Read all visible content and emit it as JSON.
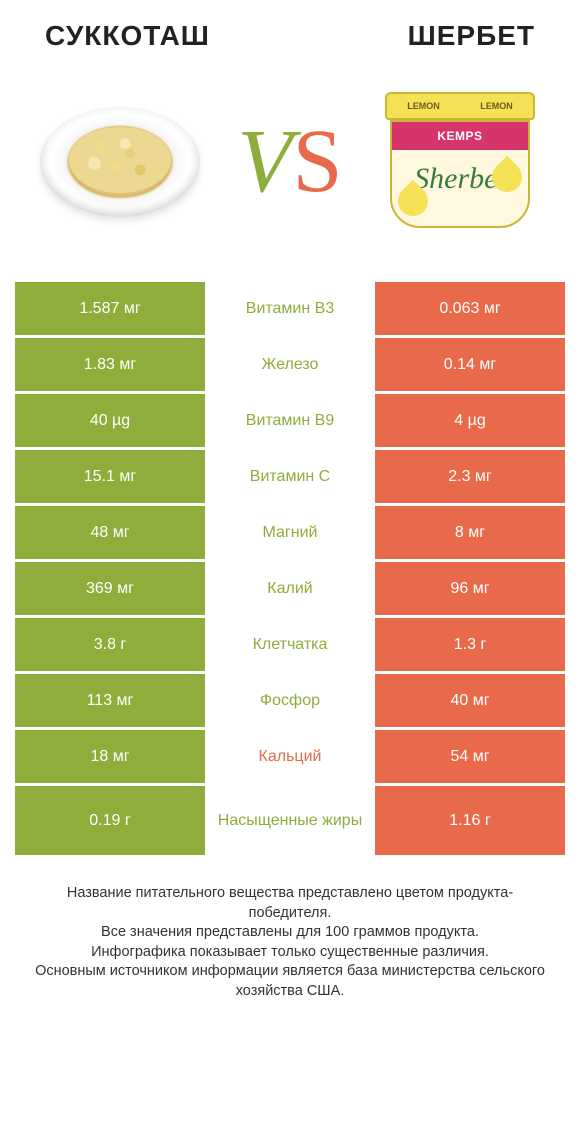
{
  "colors": {
    "green": "#8fad3a",
    "orange": "#e96a4b",
    "vs_v": "#8fad3a",
    "vs_s": "#e96a4b"
  },
  "header": {
    "left_title": "СУККОТАШ",
    "right_title": "ШЕРБЕТ",
    "vs_v": "V",
    "vs_s": "S"
  },
  "tub": {
    "lid_text_left": "LEMON",
    "lid_text_right": "LEMON",
    "brand": "KEMPS",
    "script": "Sherbet"
  },
  "rows": [
    {
      "nutrient": "Витамин B3",
      "left": "1.587 мг",
      "right": "0.063 мг",
      "winner": "left"
    },
    {
      "nutrient": "Железо",
      "left": "1.83 мг",
      "right": "0.14 мг",
      "winner": "left"
    },
    {
      "nutrient": "Витамин B9",
      "left": "40 µg",
      "right": "4 µg",
      "winner": "left"
    },
    {
      "nutrient": "Витамин C",
      "left": "15.1 мг",
      "right": "2.3 мг",
      "winner": "left"
    },
    {
      "nutrient": "Магний",
      "left": "48 мг",
      "right": "8 мг",
      "winner": "left"
    },
    {
      "nutrient": "Калий",
      "left": "369 мг",
      "right": "96 мг",
      "winner": "left"
    },
    {
      "nutrient": "Клетчатка",
      "left": "3.8 г",
      "right": "1.3 г",
      "winner": "left"
    },
    {
      "nutrient": "Фосфор",
      "left": "113 мг",
      "right": "40 мг",
      "winner": "left"
    },
    {
      "nutrient": "Кальций",
      "left": "18 мг",
      "right": "54 мг",
      "winner": "right"
    },
    {
      "nutrient": "Насыщенные жиры",
      "left": "0.19 г",
      "right": "1.16 г",
      "winner": "left",
      "tall": true
    }
  ],
  "footer": "Название питательного вещества представлено цветом продукта-победителя.\nВсе значения представлены для 100 граммов продукта.\nИнфографика показывает только существенные различия.\nОсновным источником информации является база министерства сельского хозяйства США."
}
